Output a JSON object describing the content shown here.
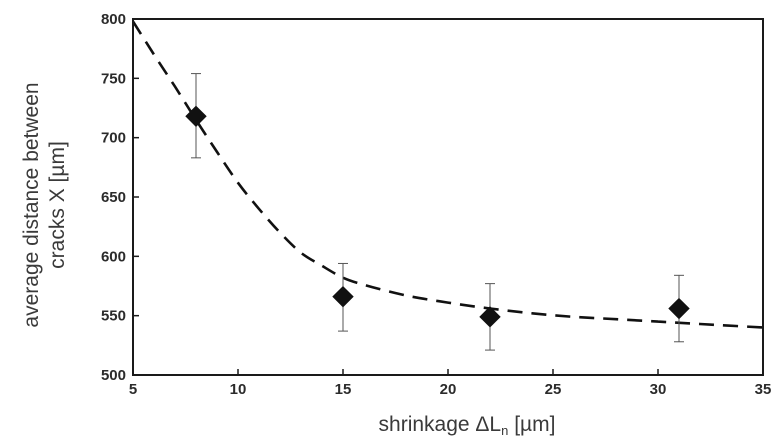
{
  "chart_data": {
    "type": "scatter",
    "title": "",
    "xlabel": "shrinkage ΔL",
    "xlabel_subscript": "n",
    "xlabel_unit": " [µm]",
    "ylabel_line1": "average distance between",
    "ylabel_line2": "cracks X [µm]",
    "xlim": [
      5,
      35
    ],
    "ylim": [
      500,
      800
    ],
    "xticks": [
      5,
      10,
      15,
      20,
      25,
      30,
      35
    ],
    "yticks": [
      500,
      550,
      600,
      650,
      700,
      750,
      800
    ],
    "xtick_labels": [
      "5",
      "10",
      "15",
      "20",
      "25",
      "30",
      "35"
    ],
    "ytick_labels": [
      "500",
      "550",
      "600",
      "650",
      "700",
      "750",
      "800"
    ],
    "grid": false,
    "legend": "none",
    "series": [
      {
        "marker": "diamond",
        "color": "#111111",
        "points": [
          {
            "x": 8,
            "y": 718,
            "err_low": 683,
            "err_high": 754
          },
          {
            "x": 15,
            "y": 566,
            "err_low": 537,
            "err_high": 594
          },
          {
            "x": 22,
            "y": 549,
            "err_low": 521,
            "err_high": 577
          },
          {
            "x": 31,
            "y": 556,
            "err_low": 528,
            "err_high": 584
          }
        ]
      }
    ],
    "fit_curve": {
      "style": "dashed",
      "color": "#111111",
      "x": [
        5,
        6,
        7,
        8,
        9,
        10,
        11,
        12,
        13,
        14,
        15,
        16,
        18,
        20,
        22,
        24,
        26,
        28,
        30,
        32,
        35
      ],
      "y": [
        798,
        770,
        743,
        715,
        688,
        662,
        640,
        620,
        603,
        592,
        582,
        576,
        567,
        561,
        556,
        552,
        549,
        547,
        545,
        543,
        540
      ]
    }
  }
}
